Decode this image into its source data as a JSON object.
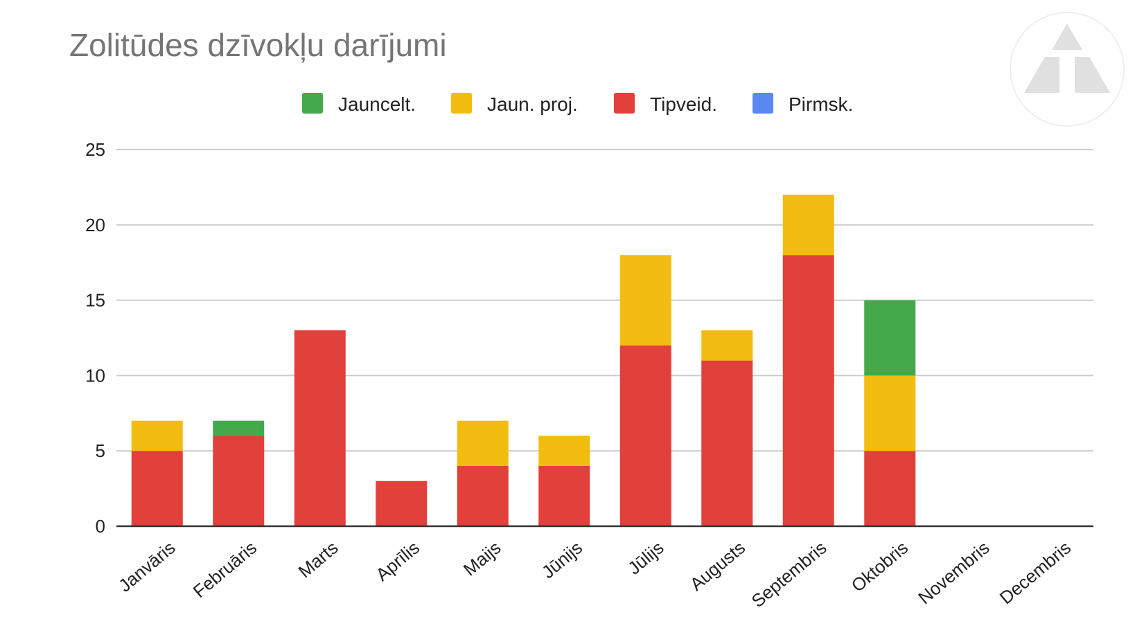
{
  "chart_data": {
    "type": "bar",
    "stacked": true,
    "title": "Zolitūdes dzīvokļu darījumi",
    "xlabel": "",
    "ylabel": "",
    "ylim": [
      0,
      25
    ],
    "yticks": [
      "0",
      "5",
      "10",
      "15",
      "20",
      "25"
    ],
    "grid": true,
    "legend_position": "top",
    "categories": [
      "Janvāris",
      "Februāris",
      "Marts",
      "Aprīlis",
      "Maijs",
      "Jūnijs",
      "Jūlijs",
      "Augusts",
      "Septembris",
      "Oktobris",
      "Novembris",
      "Decembris"
    ],
    "series": [
      {
        "name": "Jauncelt.",
        "color": "#43a94b",
        "values": [
          0,
          1,
          0,
          0,
          0,
          0,
          0,
          0,
          0,
          5,
          0,
          0
        ]
      },
      {
        "name": "Jaun. proj.",
        "color": "#f3bc10",
        "values": [
          2,
          0,
          0,
          0,
          3,
          2,
          6,
          2,
          4,
          5,
          0,
          0
        ]
      },
      {
        "name": "Tipveid.",
        "color": "#e2403a",
        "values": [
          5,
          6,
          13,
          3,
          4,
          4,
          12,
          11,
          18,
          5,
          0,
          0
        ]
      },
      {
        "name": "Pirmsk.",
        "color": "#5b87f0",
        "values": [
          0,
          0,
          0,
          0,
          0,
          0,
          0,
          0,
          0,
          0,
          0,
          0
        ]
      }
    ],
    "stack_order": [
      "Tipveid.",
      "Jaun. proj.",
      "Jauncelt.",
      "Pirmsk."
    ]
  },
  "logo": {
    "icon": "triangle-logo-icon",
    "color": "#e0e0e0"
  }
}
